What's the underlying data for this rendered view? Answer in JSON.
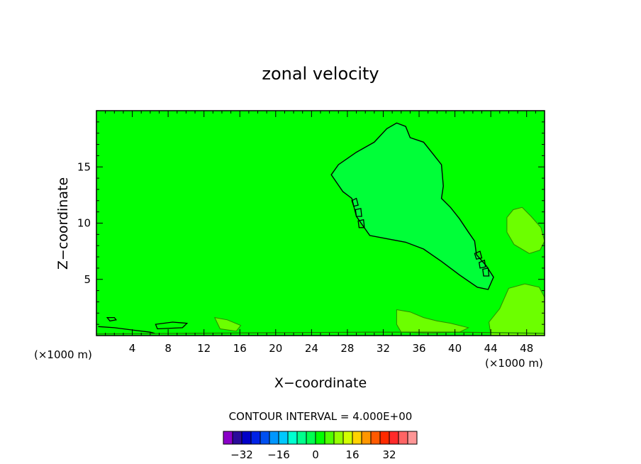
{
  "chart_data": {
    "type": "contour",
    "title": "zonal velocity",
    "xlabel": "X−coordinate",
    "ylabel": "Z−coordinate",
    "x_unit_left": "(×1000 m)",
    "x_unit_right": "(×1000 m)",
    "xlim": [
      0,
      50
    ],
    "ylim": [
      0,
      20
    ],
    "x_ticks": [
      4,
      8,
      12,
      16,
      20,
      24,
      28,
      32,
      36,
      40,
      44,
      48
    ],
    "y_ticks": [
      5,
      10,
      15
    ],
    "background_color": "#00ff00",
    "contour_interval_text": "CONTOUR INTERVAL = 4.000E+00",
    "colorbar": {
      "colors": [
        "#8a00c8",
        "#2a0a9a",
        "#0000c8",
        "#0022e6",
        "#0050f0",
        "#0096ff",
        "#00c8ff",
        "#00ffd0",
        "#00ff8c",
        "#00ff50",
        "#00ff00",
        "#50ff00",
        "#96ff00",
        "#d2ff00",
        "#ffd200",
        "#ff9600",
        "#ff5a00",
        "#ff2a00",
        "#ff2a2a",
        "#ff6464",
        "#ff9696"
      ],
      "tick_labels": [
        "−32",
        "−16",
        "0",
        "16",
        "32"
      ],
      "tick_values": [
        -32,
        -16,
        0,
        16,
        32
      ]
    },
    "regions": [
      {
        "name": "negative-core",
        "value": -4,
        "fill": "#00ff38",
        "points": [
          [
            26.2,
            14.3
          ],
          [
            27,
            15.2
          ],
          [
            29,
            16.3
          ],
          [
            31,
            17.2
          ],
          [
            32.4,
            18.4
          ],
          [
            33.5,
            18.9
          ],
          [
            34.5,
            18.6
          ],
          [
            35,
            17.6
          ],
          [
            36.5,
            17.2
          ],
          [
            37.5,
            16.2
          ],
          [
            38.5,
            15.2
          ],
          [
            38.7,
            13.3
          ],
          [
            38.5,
            12.2
          ],
          [
            39.5,
            11.4
          ],
          [
            40.5,
            10.4
          ],
          [
            41.5,
            9.2
          ],
          [
            42.2,
            8.4
          ],
          [
            42.4,
            7.2
          ],
          [
            43.5,
            6.2
          ],
          [
            44.3,
            5.2
          ],
          [
            43.7,
            4.1
          ],
          [
            42.5,
            4.3
          ],
          [
            40.5,
            5.4
          ],
          [
            38.5,
            6.6
          ],
          [
            36.5,
            7.7
          ],
          [
            34.5,
            8.3
          ],
          [
            32.5,
            8.6
          ],
          [
            30.5,
            8.9
          ],
          [
            29,
            10.6
          ],
          [
            28.5,
            12.2
          ],
          [
            27.5,
            12.8
          ],
          [
            26.2,
            14.3
          ]
        ]
      },
      {
        "name": "positive-right",
        "value": 4,
        "fill": "#6cff00",
        "points": [
          [
            45.8,
            10.5
          ],
          [
            46.5,
            11.2
          ],
          [
            47.5,
            11.4
          ],
          [
            48.5,
            10.6
          ],
          [
            49.6,
            9.6
          ],
          [
            50,
            8.4
          ],
          [
            49.5,
            7.6
          ],
          [
            48.3,
            7.3
          ],
          [
            46.6,
            8.1
          ],
          [
            45.8,
            9.2
          ],
          [
            45.8,
            10.5
          ]
        ]
      },
      {
        "name": "positive-bottom-right",
        "value": 4,
        "fill": "#6cff00",
        "points": [
          [
            43.8,
            1.2
          ],
          [
            45,
            2.4
          ],
          [
            46,
            4.2
          ],
          [
            47.8,
            4.6
          ],
          [
            49.4,
            4.3
          ],
          [
            50,
            3.4
          ],
          [
            50,
            0
          ],
          [
            44,
            0
          ],
          [
            43.8,
            1.2
          ]
        ]
      },
      {
        "name": "positive-surface-1",
        "value": 4,
        "fill": "#6cff00",
        "points": [
          [
            13.2,
            1.6
          ],
          [
            14.6,
            1.4
          ],
          [
            16.1,
            0.9
          ],
          [
            15.6,
            0.4
          ],
          [
            13.8,
            0.6
          ],
          [
            13.2,
            1.6
          ]
        ]
      },
      {
        "name": "positive-surface-2",
        "value": 4,
        "fill": "#6cff00",
        "points": [
          [
            33.5,
            2.3
          ],
          [
            35,
            2.1
          ],
          [
            36.5,
            1.6
          ],
          [
            38,
            1.3
          ],
          [
            39.5,
            1.1
          ],
          [
            41.5,
            0.7
          ],
          [
            40.5,
            0.3
          ],
          [
            37,
            0.2
          ],
          [
            34,
            0.3
          ],
          [
            33.5,
            1.0
          ],
          [
            33.5,
            2.3
          ]
        ]
      }
    ],
    "lines": [
      {
        "name": "left-streak",
        "value": -4,
        "points": [
          [
            0.2,
            0.8
          ],
          [
            2,
            0.7
          ],
          [
            4,
            0.5
          ],
          [
            6,
            0.3
          ],
          [
            6.5,
            0.2
          ]
        ]
      },
      {
        "name": "left-blob",
        "value": -4,
        "points": [
          [
            1.2,
            1.6
          ],
          [
            2,
            1.6
          ],
          [
            2.2,
            1.4
          ],
          [
            1.5,
            1.3
          ],
          [
            1.2,
            1.6
          ]
        ]
      },
      {
        "name": "mid-streak",
        "value": -4,
        "points": [
          [
            6.6,
            1.0
          ],
          [
            8.5,
            1.2
          ],
          [
            10.1,
            1.1
          ],
          [
            9.6,
            0.7
          ],
          [
            6.8,
            0.6
          ],
          [
            6.6,
            1.0
          ]
        ]
      },
      {
        "name": "surface-line",
        "value": 0,
        "points": [
          [
            0,
            0.15
          ],
          [
            10,
            0.2
          ],
          [
            20,
            0.25
          ],
          [
            30,
            0.3
          ],
          [
            40,
            0.3
          ],
          [
            50,
            0.2
          ]
        ]
      },
      {
        "name": "small-ring-1",
        "value": -4,
        "points": [
          [
            28.5,
            12.0
          ],
          [
            29,
            12.2
          ],
          [
            29.2,
            11.6
          ],
          [
            28.7,
            11.5
          ],
          [
            28.5,
            12.0
          ]
        ]
      },
      {
        "name": "small-ring-2",
        "value": -4,
        "points": [
          [
            28.9,
            11.2
          ],
          [
            29.5,
            11.3
          ],
          [
            29.6,
            10.6
          ],
          [
            29.0,
            10.6
          ],
          [
            28.9,
            11.2
          ]
        ]
      },
      {
        "name": "small-ring-3",
        "value": -4,
        "points": [
          [
            29.2,
            10.2
          ],
          [
            29.8,
            10.3
          ],
          [
            29.9,
            9.6
          ],
          [
            29.3,
            9.6
          ],
          [
            29.2,
            10.2
          ]
        ]
      },
      {
        "name": "small-ring-4",
        "value": -4,
        "points": [
          [
            42.2,
            7.3
          ],
          [
            42.8,
            7.5
          ],
          [
            43.0,
            6.9
          ],
          [
            42.4,
            6.8
          ],
          [
            42.2,
            7.3
          ]
        ]
      },
      {
        "name": "small-ring-5",
        "value": -4,
        "points": [
          [
            42.7,
            6.5
          ],
          [
            43.3,
            6.7
          ],
          [
            43.4,
            6.1
          ],
          [
            42.8,
            6.0
          ],
          [
            42.7,
            6.5
          ]
        ]
      },
      {
        "name": "small-ring-6",
        "value": -4,
        "points": [
          [
            43.1,
            5.9
          ],
          [
            43.7,
            6.0
          ],
          [
            43.8,
            5.3
          ],
          [
            43.2,
            5.3
          ],
          [
            43.1,
            5.9
          ]
        ]
      }
    ]
  }
}
